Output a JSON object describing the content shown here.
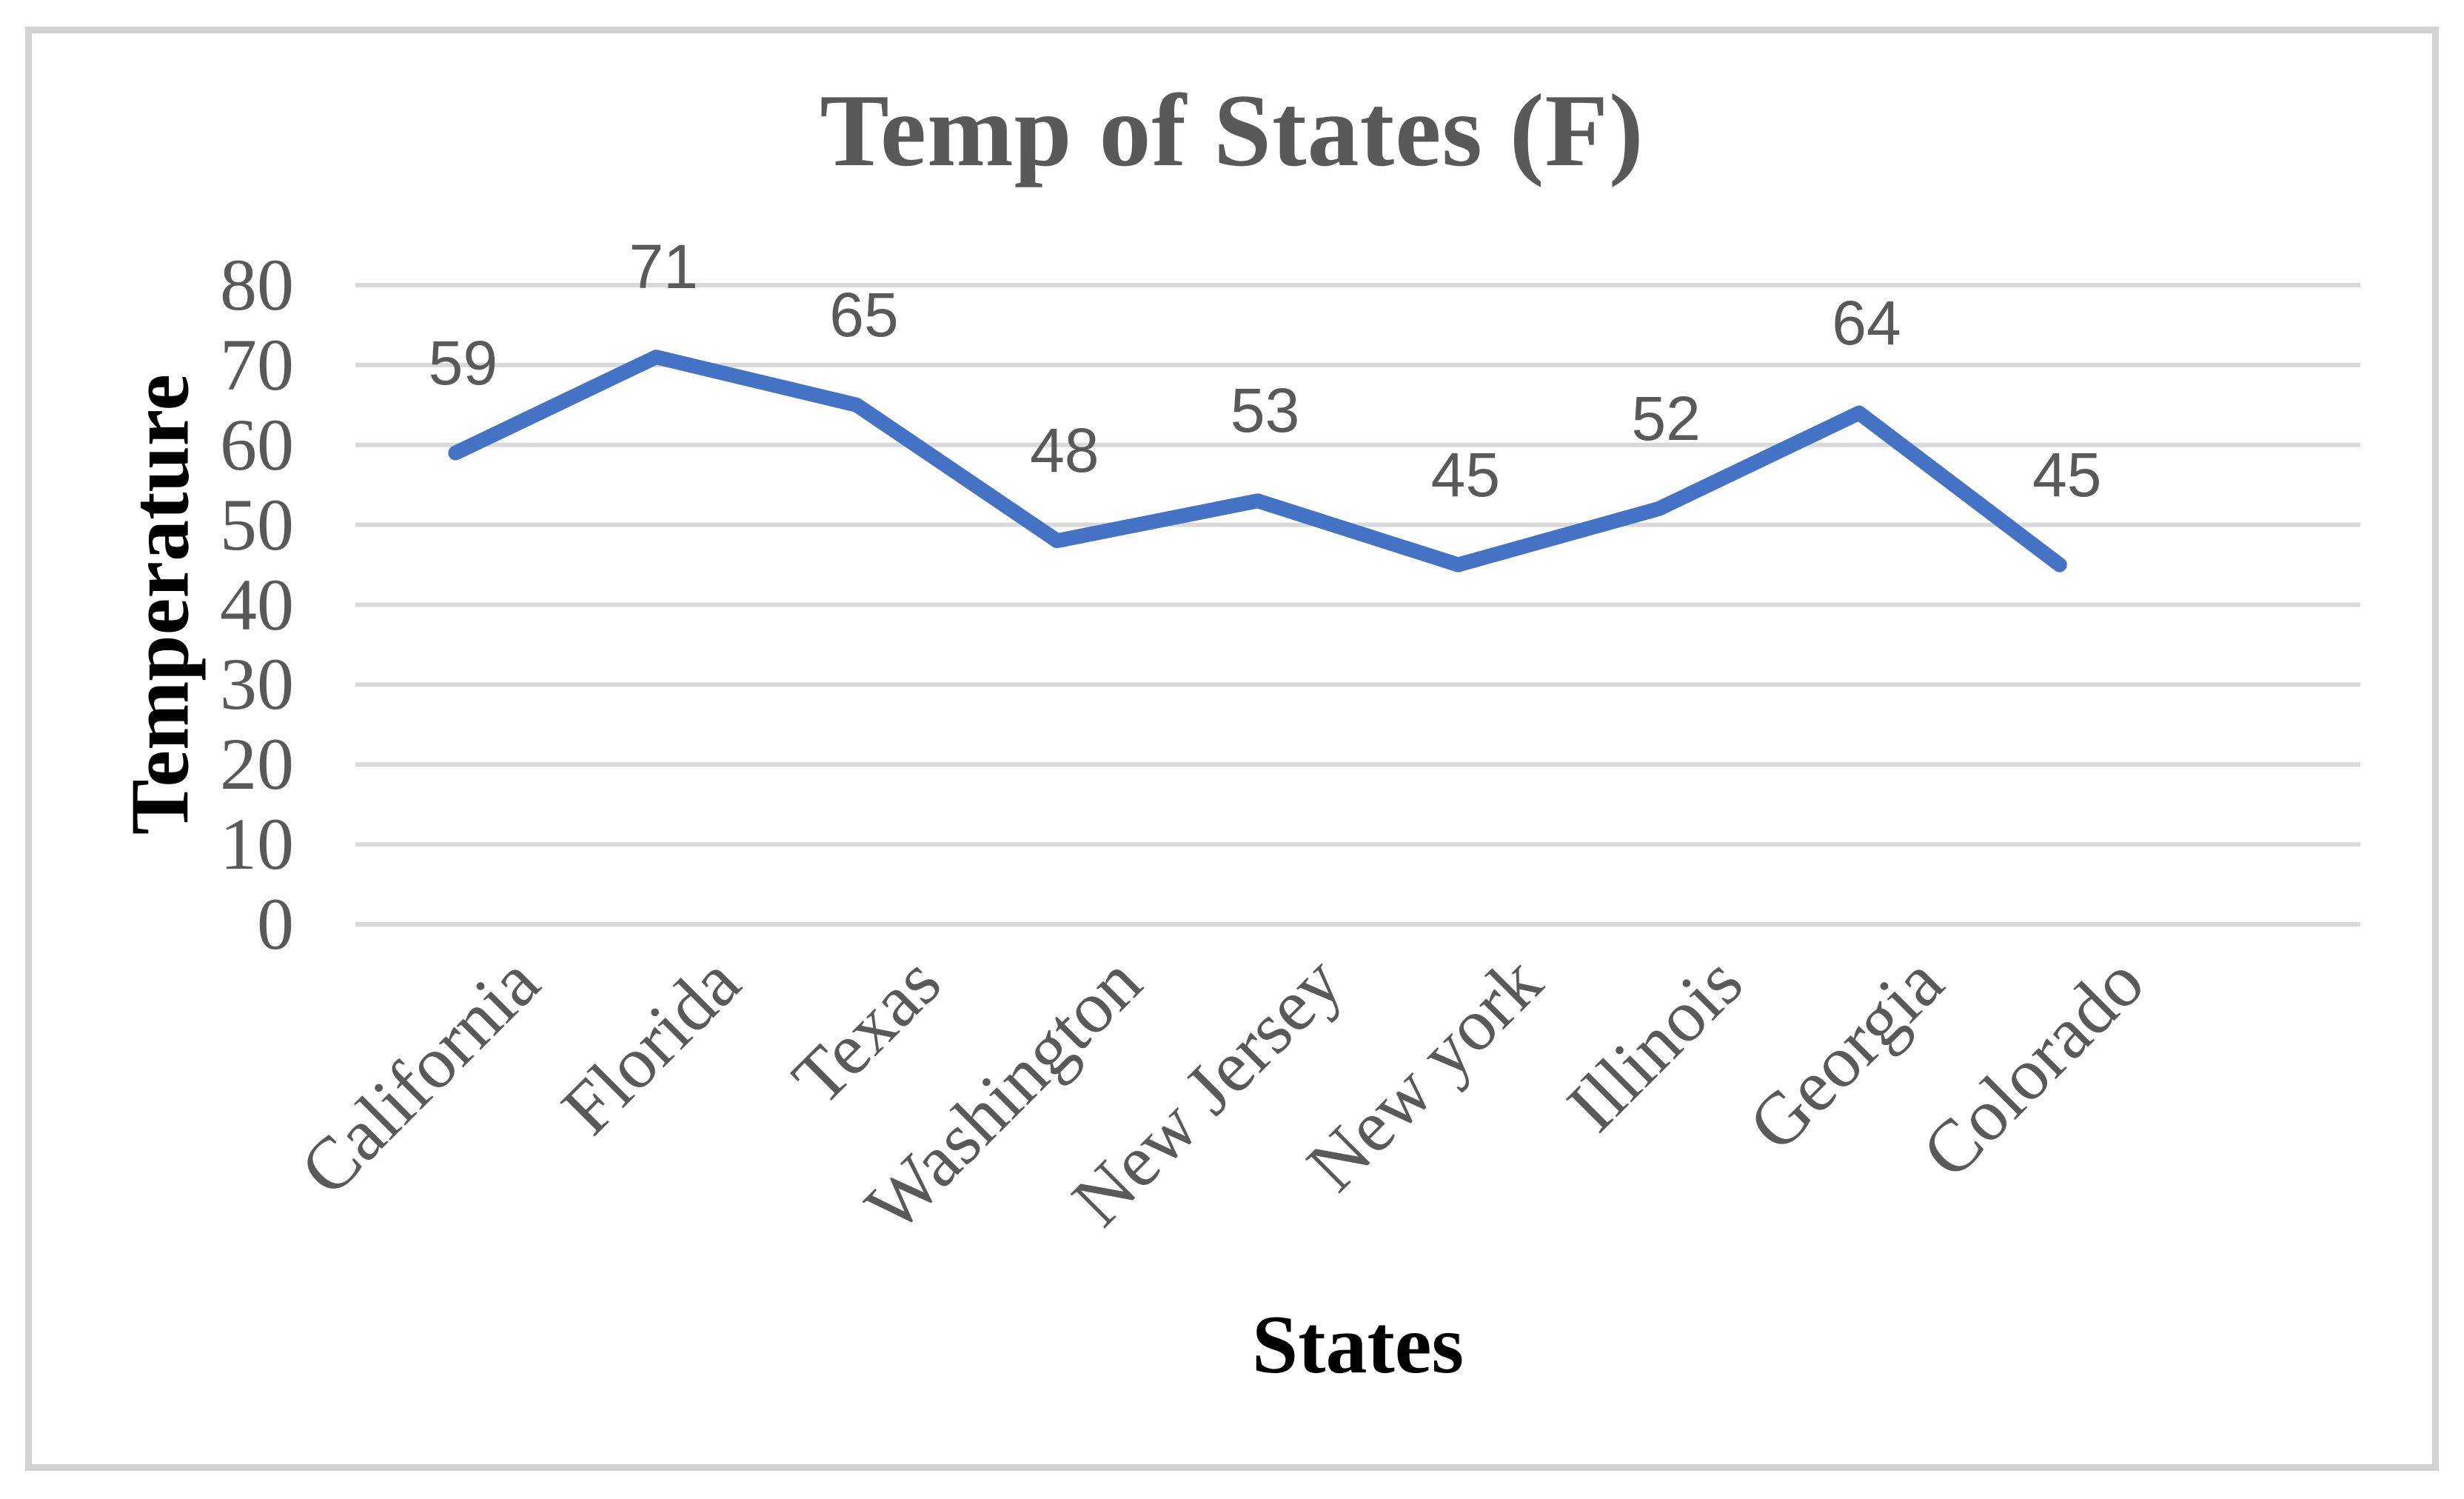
{
  "chart_data": {
    "type": "line",
    "title": "Temp of States (F)",
    "xlabel": "States",
    "ylabel": "Temperature",
    "categories": [
      "California",
      "Florida",
      "Texas",
      "Washington",
      "New Jersey",
      "New york",
      "Illinois",
      "Georgia",
      "Colorado"
    ],
    "values": [
      59,
      71,
      65,
      48,
      53,
      45,
      52,
      64,
      45
    ],
    "data_labels": [
      59,
      71,
      65,
      48,
      53,
      45,
      52,
      64,
      45
    ],
    "ylim": [
      0,
      80
    ],
    "ytick_step": 10,
    "yticks": [
      0,
      10,
      20,
      30,
      40,
      50,
      60,
      70,
      80
    ],
    "grid": "horizontal-major",
    "legend": "none",
    "markers": "none",
    "x_label_rotation_deg": 45,
    "extra_empty_category_slots": 1,
    "line_color": "#4472C4",
    "gridline_color": "#D9D9D9",
    "tick_label_color": "#595959",
    "title_color": "#595959",
    "axis_title_color": "#000000",
    "frame_border_color": "#D2D2D2",
    "background_color": "#FFFFFF"
  }
}
